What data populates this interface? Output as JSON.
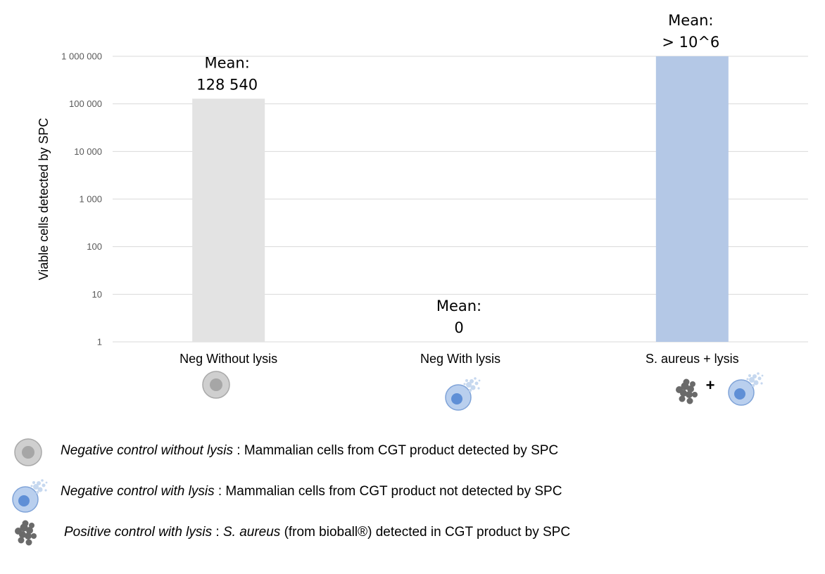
{
  "chart_data": {
    "type": "bar",
    "scale": "log",
    "ylabel": "Viable cells detected by SPC",
    "xlabel": "",
    "title": "",
    "ylim": [
      1,
      1000000
    ],
    "yticks": [
      {
        "value": 1,
        "label": "1"
      },
      {
        "value": 10,
        "label": "10"
      },
      {
        "value": 100,
        "label": "100"
      },
      {
        "value": 1000,
        "label": "1 000"
      },
      {
        "value": 10000,
        "label": "10 000"
      },
      {
        "value": 100000,
        "label": "100 000"
      },
      {
        "value": 1000000,
        "label": "1 000 000"
      }
    ],
    "grid": true,
    "categories": [
      "Neg Without lysis",
      "Neg With lysis",
      "S. aureus + lysis"
    ],
    "values": [
      128540,
      0,
      1000000
    ],
    "colors": [
      "#e3e3e3",
      "#ffffff",
      "#b4c8e6"
    ],
    "annotations": [
      {
        "line1": "Mean:",
        "line2": "128 540"
      },
      {
        "line1": "Mean:",
        "line2": "0"
      },
      {
        "line1": "Mean:",
        "line2": "> 10^6"
      }
    ]
  },
  "legend": [
    {
      "icon": "mammalian-cell-icon",
      "italic": "Negative control without lysis",
      "text": " : Mammalian cells from CGT product detected by SPC"
    },
    {
      "icon": "lysed-cell-icon",
      "italic": "Negative control with lysis",
      "text": " : Mammalian cells from CGT product not detected by SPC"
    },
    {
      "icon": "bacteria-cluster-icon",
      "italic": "Positive control with lysis",
      "sep": " : ",
      "italic2": "S. aureus",
      "text": " (from bioball®) detected in CGT product by SPC"
    }
  ],
  "plus_sign": "+"
}
